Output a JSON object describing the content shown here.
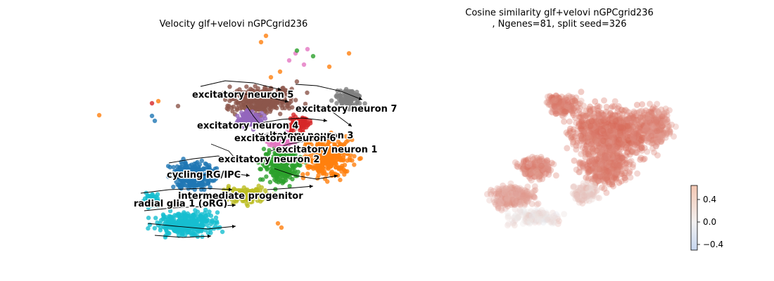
{
  "chart_data": [
    {
      "type": "scatter",
      "title": "Velocity glf+velovi nGPCgrid236",
      "xlabel": "",
      "ylabel": "",
      "grid": false,
      "legend": "none",
      "annotations": [
        "streamline arrows"
      ],
      "clusters": [
        {
          "label": "excitatory neuron 5",
          "color": "#8c564b"
        },
        {
          "label": "excitatory neuron 7",
          "color": "#7f7f7f"
        },
        {
          "label": "excitatory neuron 4",
          "color": "#9467bd"
        },
        {
          "label": "excitatory neuron 3",
          "color": "#d62728"
        },
        {
          "label": "excitatory neuron 6",
          "color": "#e377c2"
        },
        {
          "label": "excitatory neuron 1",
          "color": "#ff7f0e"
        },
        {
          "label": "excitatory neuron 2",
          "color": "#2ca02c"
        },
        {
          "label": "cycling RG/IPC",
          "color": "#1f77b4"
        },
        {
          "label": "intermediate progenitor",
          "color": "#bcbd22"
        },
        {
          "label": "radial glia 1 (oRG)",
          "color": "#17becf"
        }
      ]
    },
    {
      "type": "scatter",
      "title": "Cosine similarity glf+velovi nGPCgrid236\n, Ngenes=81, split seed=326",
      "xlabel": "",
      "ylabel": "",
      "grid": false,
      "colorbar": {
        "ticks": [
          "0.4",
          "0.0",
          "−0.4"
        ],
        "values": [
          0.4,
          0.0,
          -0.4
        ],
        "range": [
          -0.5,
          0.65
        ],
        "colormap": "coolwarm"
      }
    }
  ]
}
